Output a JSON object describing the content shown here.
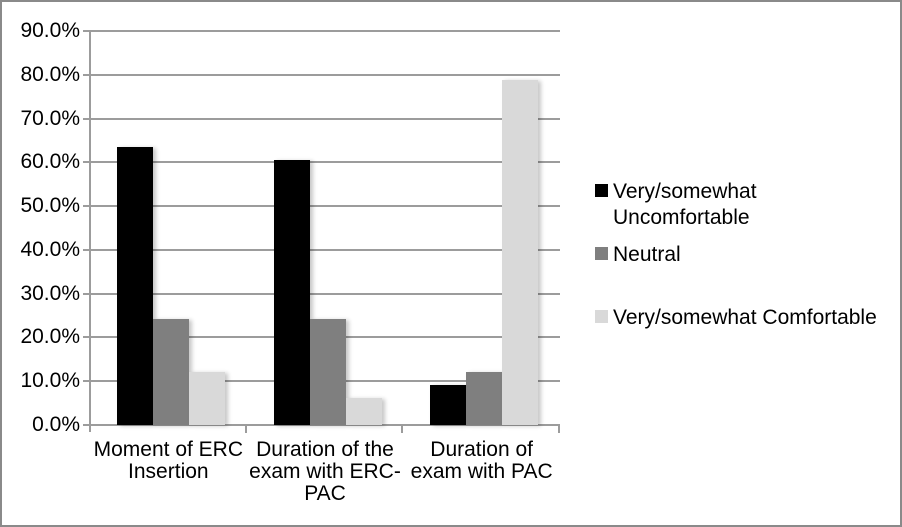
{
  "chart_data": {
    "type": "bar",
    "title": "",
    "xlabel": "",
    "ylabel": "",
    "categories": [
      "Moment of ERC\nInsertion",
      "Duration of the\nexam with ERC-\nPAC",
      "Duration of\nexam with PAC"
    ],
    "series": [
      {
        "name": "Very/somewhat\nUncomfortable",
        "color": "#000000",
        "values": [
          63.6,
          60.6,
          9.1
        ]
      },
      {
        "name": "Neutral",
        "color": "#7f7f7f",
        "values": [
          24.2,
          24.2,
          12.1
        ]
      },
      {
        "name": "Very/somewhat Comfortable",
        "color": "#d9d9d9",
        "values": [
          12.1,
          6.1,
          78.8
        ]
      }
    ],
    "ylim": [
      0,
      90
    ],
    "y_tick_step": 10,
    "y_tick_labels": [
      "0.0%",
      "10.0%",
      "20.0%",
      "30.0%",
      "40.0%",
      "50.0%",
      "60.0%",
      "70.0%",
      "80.0%",
      "90.0%"
    ],
    "grid": true,
    "legend_position": "right"
  },
  "colors": {
    "gridline": "#9c9c9c",
    "axis": "#9c9c9c",
    "frame_border": "#8a8a8a",
    "background": "#ffffff",
    "text": "#000000"
  }
}
